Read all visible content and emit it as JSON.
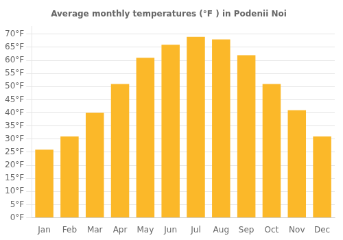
{
  "chart_data": {
    "type": "bar",
    "title": "Average monthly temperatures (°F ) in Podenii Noi",
    "categories": [
      "Jan",
      "Feb",
      "Mar",
      "Apr",
      "May",
      "Jun",
      "Jul",
      "Aug",
      "Sep",
      "Oct",
      "Nov",
      "Dec"
    ],
    "values": [
      26,
      31,
      40,
      51,
      61,
      66,
      69,
      68,
      62,
      51,
      41,
      31
    ],
    "color": "#FBB829",
    "ylim": [
      0,
      73
    ],
    "yticks": [
      {
        "value": 0,
        "label": "0°F"
      },
      {
        "value": 5,
        "label": "5°F"
      },
      {
        "value": 10,
        "label": "10°F"
      },
      {
        "value": 15,
        "label": "15°F"
      },
      {
        "value": 20,
        "label": "20°F"
      },
      {
        "value": 25,
        "label": "25°F"
      },
      {
        "value": 30,
        "label": "30°F"
      },
      {
        "value": 35,
        "label": "35°F"
      },
      {
        "value": 40,
        "label": "40°F"
      },
      {
        "value": 45,
        "label": "45°F"
      },
      {
        "value": 50,
        "label": "50°F"
      },
      {
        "value": 55,
        "label": "55°F"
      },
      {
        "value": 60,
        "label": "60°F"
      },
      {
        "value": 65,
        "label": "65°F"
      },
      {
        "value": 70,
        "label": "70°F"
      }
    ],
    "grid": true
  }
}
